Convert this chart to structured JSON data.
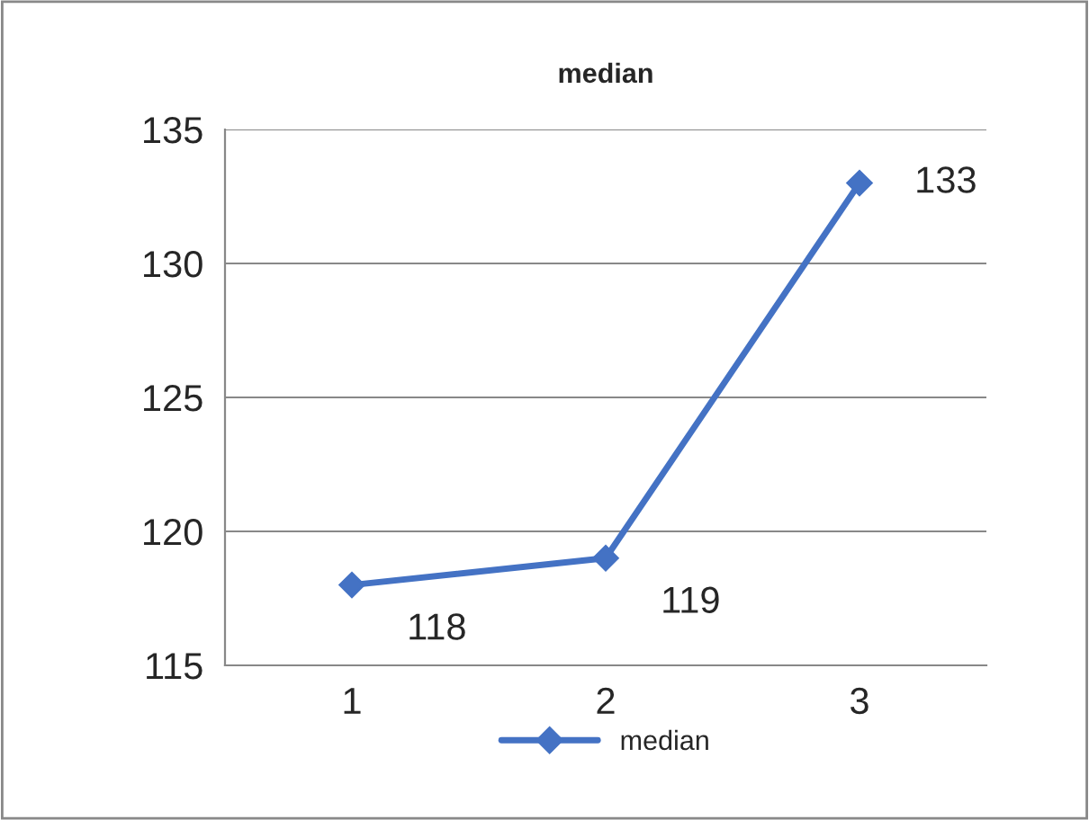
{
  "chart_data": {
    "type": "line",
    "title": "median",
    "categories": [
      "1",
      "2",
      "3"
    ],
    "series": [
      {
        "name": "median",
        "color": "#4472c4",
        "values": [
          118,
          119,
          133
        ]
      }
    ],
    "ylim": [
      115,
      135
    ],
    "yticks": [
      115,
      120,
      125,
      130,
      135
    ],
    "grid": "y",
    "legend": "bottom",
    "marker": "diamond",
    "line_style": "solid",
    "data_labels": true
  }
}
